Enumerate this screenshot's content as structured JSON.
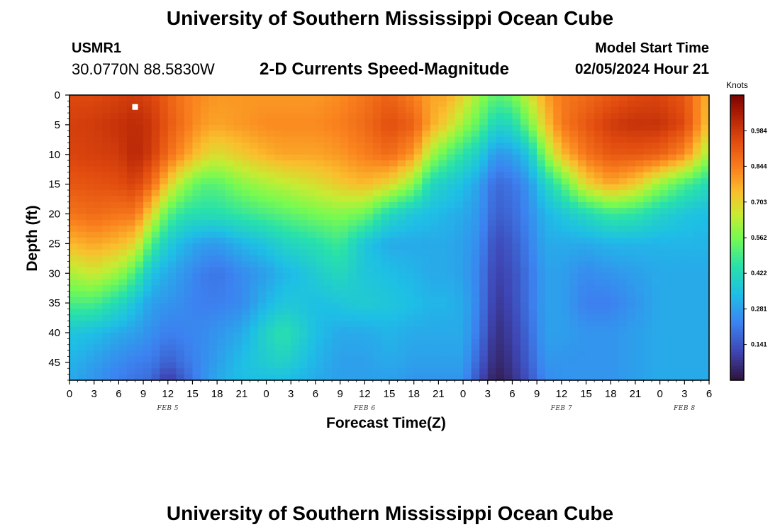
{
  "header": {
    "title": "University of Southern Mississippi Ocean Cube",
    "station": "USMR1",
    "coordinates": "30.0770N  88.5830W",
    "subtitle": "2-D Currents Speed-Magnitude",
    "model_start_label": "Model Start Time",
    "model_start_value": "02/05/2024 Hour 21"
  },
  "footer": {
    "title": "University of Southern Mississippi Ocean Cube"
  },
  "chart_data": {
    "type": "heatmap",
    "xlabel": "Forecast Time(Z)",
    "ylabel": "Depth (ft)",
    "x_hours_range": [
      0,
      78
    ],
    "x_tick_labels": [
      "0",
      "3",
      "6",
      "9",
      "12",
      "15",
      "18",
      "21",
      "0",
      "3",
      "6",
      "9",
      "12",
      "15",
      "18",
      "21",
      "0",
      "3",
      "6",
      "9",
      "12",
      "15",
      "18",
      "21",
      "0",
      "3",
      "6"
    ],
    "date_labels": [
      {
        "label": "FEB 5",
        "at_tick": 4
      },
      {
        "label": "FEB 6",
        "at_tick": 12
      },
      {
        "label": "FEB 7",
        "at_tick": 20
      },
      {
        "label": "FEB 8",
        "at_tick": 25
      }
    ],
    "ylim": [
      0,
      48
    ],
    "y_ticks": [
      0,
      5,
      10,
      15,
      20,
      25,
      30,
      35,
      40,
      45
    ],
    "colorbar": {
      "unit": "Knots",
      "range": [
        0.0,
        1.125
      ],
      "tick_values": [
        0.984,
        0.844,
        0.703,
        0.562,
        0.422,
        0.281,
        0.141
      ],
      "tick_labels": [
        "0.984",
        "0.844",
        "0.703",
        "0.562",
        "0.422",
        "0.281",
        "0.141"
      ]
    },
    "depth_levels_ft": [
      0,
      5,
      10,
      15,
      20,
      25,
      30,
      35,
      40,
      45,
      48
    ],
    "columns": [
      {
        "hour": 0,
        "speeds": [
          0.95,
          0.97,
          0.96,
          0.92,
          0.86,
          0.75,
          0.62,
          0.5,
          0.36,
          0.32,
          0.3
        ]
      },
      {
        "hour": 3,
        "speeds": [
          0.95,
          0.98,
          0.97,
          0.93,
          0.88,
          0.78,
          0.66,
          0.5,
          0.34,
          0.28,
          0.26
        ]
      },
      {
        "hour": 6,
        "speeds": [
          0.97,
          1.0,
          0.98,
          0.94,
          0.86,
          0.75,
          0.6,
          0.42,
          0.3,
          0.24,
          0.22
        ]
      },
      {
        "hour": 8,
        "speeds": [
          0.98,
          1.02,
          1.03,
          0.97,
          0.86,
          0.7,
          0.5,
          0.35,
          0.28,
          0.22,
          0.2
        ]
      },
      {
        "hour": 10,
        "speeds": [
          0.96,
          0.99,
          0.98,
          0.88,
          0.7,
          0.5,
          0.35,
          0.28,
          0.25,
          0.21,
          0.18
        ]
      },
      {
        "hour": 12,
        "speeds": [
          0.9,
          0.92,
          0.88,
          0.72,
          0.52,
          0.38,
          0.3,
          0.26,
          0.22,
          0.16,
          0.08
        ]
      },
      {
        "hour": 14,
        "speeds": [
          0.85,
          0.86,
          0.8,
          0.6,
          0.45,
          0.32,
          0.26,
          0.24,
          0.23,
          0.2,
          0.16
        ]
      },
      {
        "hour": 16,
        "speeds": [
          0.82,
          0.8,
          0.72,
          0.52,
          0.44,
          0.28,
          0.22,
          0.22,
          0.24,
          0.24,
          0.24
        ]
      },
      {
        "hour": 18,
        "speeds": [
          0.8,
          0.78,
          0.68,
          0.52,
          0.44,
          0.27,
          0.2,
          0.22,
          0.26,
          0.28,
          0.3
        ]
      },
      {
        "hour": 21,
        "speeds": [
          0.8,
          0.8,
          0.72,
          0.58,
          0.47,
          0.32,
          0.24,
          0.24,
          0.3,
          0.34,
          0.34
        ]
      },
      {
        "hour": 24,
        "speeds": [
          0.8,
          0.82,
          0.76,
          0.62,
          0.5,
          0.36,
          0.28,
          0.32,
          0.4,
          0.38,
          0.34
        ]
      },
      {
        "hour": 26,
        "speeds": [
          0.8,
          0.82,
          0.78,
          0.64,
          0.52,
          0.4,
          0.32,
          0.36,
          0.45,
          0.4,
          0.34
        ]
      },
      {
        "hour": 28,
        "speeds": [
          0.8,
          0.82,
          0.78,
          0.66,
          0.54,
          0.42,
          0.34,
          0.36,
          0.4,
          0.36,
          0.32
        ]
      },
      {
        "hour": 30,
        "speeds": [
          0.8,
          0.82,
          0.78,
          0.68,
          0.56,
          0.44,
          0.38,
          0.34,
          0.34,
          0.32,
          0.3
        ]
      },
      {
        "hour": 33,
        "speeds": [
          0.82,
          0.84,
          0.8,
          0.72,
          0.58,
          0.48,
          0.42,
          0.36,
          0.3,
          0.28,
          0.28
        ]
      },
      {
        "hour": 36,
        "speeds": [
          0.86,
          0.88,
          0.84,
          0.75,
          0.55,
          0.36,
          0.36,
          0.38,
          0.3,
          0.28,
          0.28
        ]
      },
      {
        "hour": 39,
        "speeds": [
          0.9,
          0.94,
          0.88,
          0.7,
          0.42,
          0.3,
          0.34,
          0.36,
          0.32,
          0.3,
          0.28
        ]
      },
      {
        "hour": 42,
        "speeds": [
          0.84,
          0.9,
          0.8,
          0.58,
          0.36,
          0.3,
          0.32,
          0.34,
          0.3,
          0.28,
          0.26
        ]
      },
      {
        "hour": 44,
        "speeds": [
          0.78,
          0.78,
          0.62,
          0.42,
          0.34,
          0.3,
          0.3,
          0.32,
          0.3,
          0.28,
          0.26
        ]
      },
      {
        "hour": 46,
        "speeds": [
          0.78,
          0.7,
          0.52,
          0.38,
          0.32,
          0.3,
          0.3,
          0.32,
          0.3,
          0.28,
          0.26
        ]
      },
      {
        "hour": 48,
        "speeds": [
          0.7,
          0.6,
          0.45,
          0.34,
          0.3,
          0.28,
          0.28,
          0.3,
          0.3,
          0.28,
          0.26
        ]
      },
      {
        "hour": 50,
        "speeds": [
          0.6,
          0.52,
          0.38,
          0.28,
          0.26,
          0.24,
          0.22,
          0.22,
          0.2,
          0.16,
          0.12
        ]
      },
      {
        "hour": 52,
        "speeds": [
          0.52,
          0.4,
          0.26,
          0.18,
          0.16,
          0.12,
          0.1,
          0.08,
          0.06,
          0.04,
          0.02
        ]
      },
      {
        "hour": 54,
        "speeds": [
          0.55,
          0.42,
          0.28,
          0.2,
          0.18,
          0.15,
          0.13,
          0.12,
          0.1,
          0.08,
          0.06
        ]
      },
      {
        "hour": 56,
        "speeds": [
          0.66,
          0.55,
          0.36,
          0.26,
          0.24,
          0.22,
          0.2,
          0.2,
          0.18,
          0.16,
          0.14
        ]
      },
      {
        "hour": 58,
        "speeds": [
          0.78,
          0.72,
          0.58,
          0.4,
          0.32,
          0.3,
          0.28,
          0.28,
          0.28,
          0.26,
          0.24
        ]
      },
      {
        "hour": 60,
        "speeds": [
          0.85,
          0.85,
          0.74,
          0.5,
          0.36,
          0.3,
          0.28,
          0.28,
          0.28,
          0.26,
          0.26
        ]
      },
      {
        "hour": 63,
        "speeds": [
          0.88,
          0.92,
          0.86,
          0.7,
          0.42,
          0.3,
          0.24,
          0.22,
          0.26,
          0.26,
          0.26
        ]
      },
      {
        "hour": 66,
        "speeds": [
          0.92,
          0.98,
          0.92,
          0.78,
          0.48,
          0.32,
          0.26,
          0.22,
          0.26,
          0.26,
          0.26
        ]
      },
      {
        "hour": 69,
        "speeds": [
          0.95,
          1.0,
          0.92,
          0.72,
          0.46,
          0.32,
          0.28,
          0.26,
          0.28,
          0.28,
          0.28
        ]
      },
      {
        "hour": 72,
        "speeds": [
          0.96,
          1.0,
          0.9,
          0.6,
          0.4,
          0.32,
          0.3,
          0.3,
          0.3,
          0.3,
          0.3
        ]
      },
      {
        "hour": 75,
        "speeds": [
          0.92,
          0.95,
          0.82,
          0.5,
          0.36,
          0.32,
          0.3,
          0.3,
          0.3,
          0.3,
          0.3
        ]
      },
      {
        "hour": 78,
        "speeds": [
          0.75,
          0.72,
          0.6,
          0.42,
          0.34,
          0.32,
          0.3,
          0.3,
          0.3,
          0.3,
          0.3
        ]
      }
    ],
    "marker": {
      "hour": 8,
      "depth": 2,
      "color": "#ffffff"
    }
  }
}
